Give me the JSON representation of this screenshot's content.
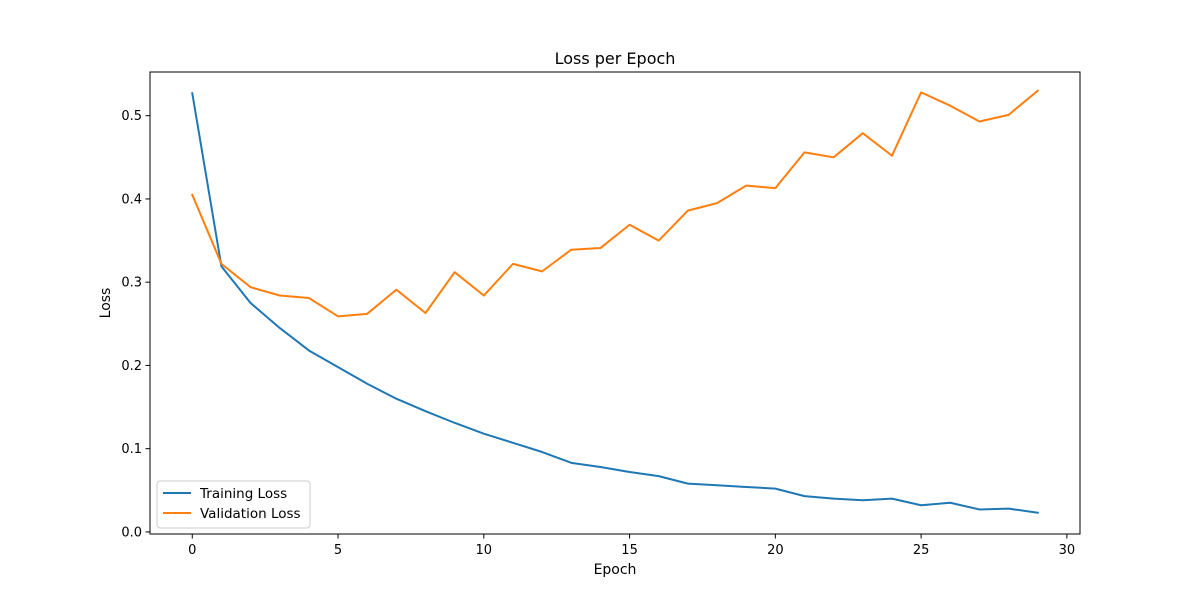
{
  "chart_data": {
    "type": "line",
    "title": "Loss per Epoch",
    "xlabel": "Epoch",
    "ylabel": "Loss",
    "xlim": [
      -1.45,
      30.45
    ],
    "ylim": [
      -0.0025,
      0.5525
    ],
    "xticks": [
      0,
      5,
      10,
      15,
      20,
      25,
      30
    ],
    "yticks": [
      0.0,
      0.1,
      0.2,
      0.3,
      0.4,
      0.5
    ],
    "grid": false,
    "legend_position": "lower-left",
    "x": [
      0,
      1,
      2,
      3,
      4,
      5,
      6,
      7,
      8,
      9,
      10,
      11,
      12,
      13,
      14,
      15,
      16,
      17,
      18,
      19,
      20,
      21,
      22,
      23,
      24,
      25,
      26,
      27,
      28,
      29
    ],
    "series": [
      {
        "name": "Training Loss",
        "color": "#1f77b4",
        "values": [
          0.527,
          0.319,
          0.275,
          0.245,
          0.218,
          0.198,
          0.178,
          0.16,
          0.145,
          0.131,
          0.118,
          0.107,
          0.096,
          0.083,
          0.078,
          0.072,
          0.067,
          0.058,
          0.056,
          0.054,
          0.052,
          0.043,
          0.04,
          0.038,
          0.04,
          0.032,
          0.035,
          0.027,
          0.028,
          0.023
        ]
      },
      {
        "name": "Validation Loss",
        "color": "#ff7f0e",
        "values": [
          0.405,
          0.322,
          0.294,
          0.284,
          0.281,
          0.259,
          0.262,
          0.291,
          0.263,
          0.312,
          0.284,
          0.322,
          0.313,
          0.339,
          0.341,
          0.369,
          0.35,
          0.386,
          0.395,
          0.416,
          0.413,
          0.456,
          0.45,
          0.479,
          0.452,
          0.528,
          0.512,
          0.493,
          0.501,
          0.53
        ]
      }
    ]
  }
}
